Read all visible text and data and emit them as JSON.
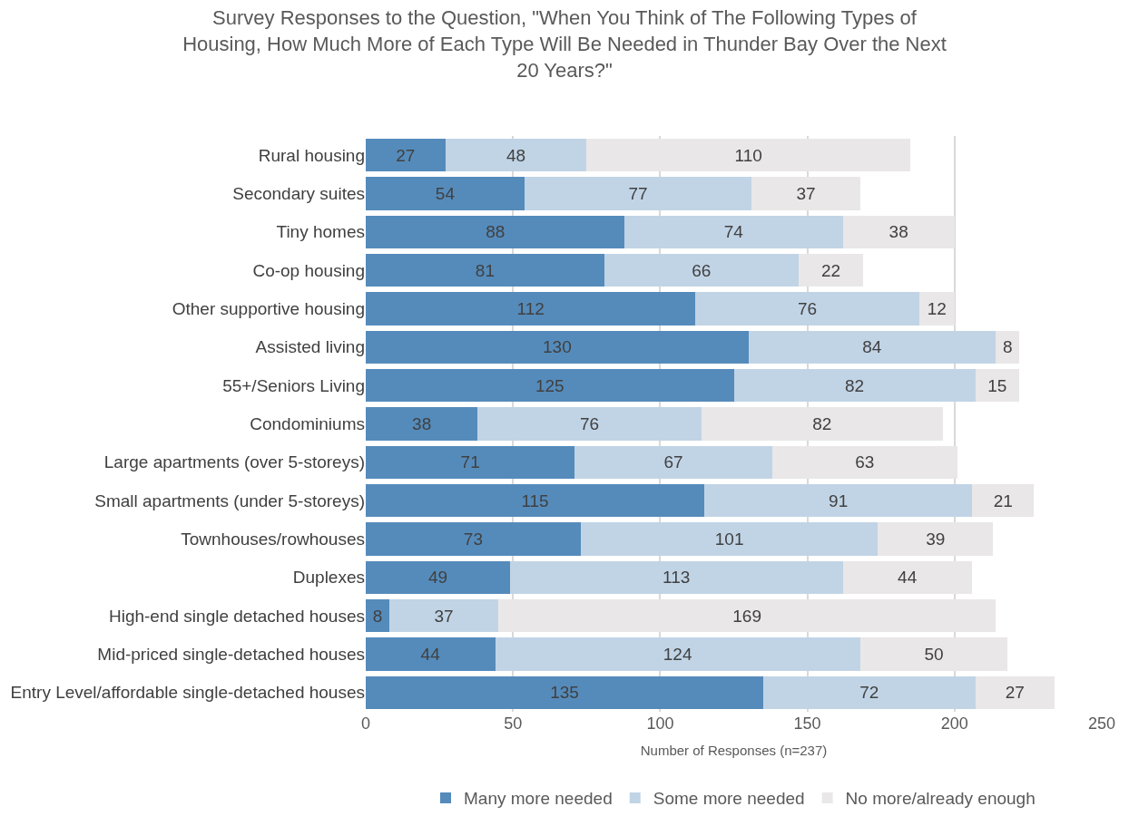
{
  "chart_data": {
    "type": "bar",
    "orientation": "horizontal",
    "stacked": true,
    "title": "Survey Responses to the Question, \"When You Think of The Following Types of Housing, How Much More of Each Type Will Be Needed in Thunder Bay Over the Next 20 Years?\"",
    "xlabel": "Number of Responses (n=237)",
    "categories": [
      "Rural housing",
      "Secondary suites",
      "Tiny homes",
      "Co-op housing",
      "Other supportive housing",
      "Assisted living",
      "55+/Seniors Living",
      "Condominiums",
      "Large apartments (over 5-storeys)",
      "Small apartments (under 5-storeys)",
      "Townhouses/rowhouses",
      "Duplexes",
      "High-end single detached houses",
      "Mid-priced single-detached houses",
      "Entry Level/affordable single-detached houses"
    ],
    "series": [
      {
        "name": "Many more needed",
        "color": "#558bbb",
        "values": [
          27,
          54,
          88,
          81,
          112,
          130,
          125,
          38,
          71,
          115,
          73,
          49,
          8,
          44,
          135
        ]
      },
      {
        "name": "Some more needed",
        "color": "#c1d4e6",
        "values": [
          48,
          77,
          74,
          66,
          76,
          84,
          82,
          76,
          67,
          91,
          101,
          113,
          37,
          124,
          72
        ]
      },
      {
        "name": "No more/already enough",
        "color": "#e9e7e8",
        "values": [
          110,
          37,
          38,
          22,
          12,
          8,
          15,
          82,
          63,
          21,
          39,
          44,
          169,
          50,
          27
        ]
      }
    ],
    "xlim": [
      0,
      250
    ],
    "xticks": [
      0,
      50,
      100,
      150,
      200,
      250
    ],
    "grid": "x",
    "legend": "bottom",
    "data_labels": true
  }
}
